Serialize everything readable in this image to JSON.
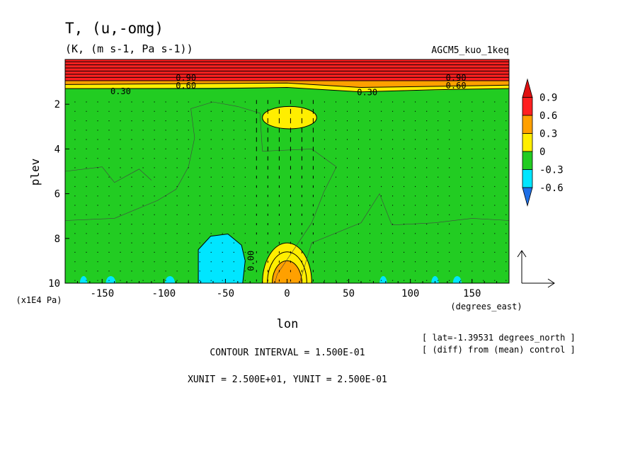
{
  "header": {
    "title": "T, (u,-omg)",
    "subtitle": "(K, (m s-1, Pa s-1))",
    "run_name": "AGCM5_kuo_1keq"
  },
  "chart_data": {
    "type": "heatmap",
    "plot": "longitude-pressure contour/shade with vector overlay",
    "xlabel": "lon",
    "xunit_label": "(degrees_east)",
    "ylabel": "plev",
    "yunit_label": "(x1E4 Pa)",
    "xlim": [
      -180,
      180
    ],
    "ylim": [
      10,
      0
    ],
    "x_ticks": [
      -150,
      -100,
      -50,
      0,
      50,
      100,
      150
    ],
    "x_tick_labels": [
      "-150",
      "-100",
      "-50",
      "0",
      "50",
      "100",
      "150"
    ],
    "y_ticks": [
      2,
      4,
      6,
      8,
      10
    ],
    "y_tick_labels": [
      "2",
      "4",
      "6",
      "8",
      "10"
    ],
    "colorbar": {
      "levels": [
        -0.6,
        -0.3,
        0,
        0.3,
        0.6,
        0.9
      ],
      "labels": [
        "-0.6",
        "-0.3",
        "0",
        "0.3",
        "0.6",
        "0.9"
      ],
      "colors": [
        "#1e6fe6",
        "#00e6ff",
        "#22cc22",
        "#ffee00",
        "#ffa000",
        "#ff2020",
        "#e01010"
      ]
    },
    "contour_labels": [
      {
        "text": "0.30",
        "lon": -135,
        "p": 1.55
      },
      {
        "text": "0.30",
        "lon": 65,
        "p": 1.6
      },
      {
        "text": "0.60",
        "lon": -82,
        "p": 1.3
      },
      {
        "text": "0.60",
        "lon": 137,
        "p": 1.3
      },
      {
        "text": "0.90",
        "lon": -82,
        "p": 0.95
      },
      {
        "text": "0.90",
        "lon": 137,
        "p": 0.95
      },
      {
        "text": "0.00",
        "lon": -27,
        "p": 9.0
      }
    ],
    "features": [
      {
        "desc": "strong warm layer near top",
        "lon_range": [
          -180,
          180
        ],
        "p_range": [
          0,
          1.3
        ],
        "max": 0.9
      },
      {
        "desc": "warm anomaly near surface",
        "lon_center": 0,
        "p_range": [
          8.2,
          10
        ],
        "max": 0.6
      },
      {
        "desc": "cool anomaly near surface",
        "lon_range": [
          -70,
          -35
        ],
        "p_range": [
          7.8,
          10
        ],
        "min": -0.3
      },
      {
        "desc": "small warm patch",
        "lon_center": 2,
        "p_center": 2.6,
        "max": 0.3
      }
    ],
    "vector_reference": {
      "xunit": "2.500E+01",
      "yunit": "2.500E-01"
    }
  },
  "footer": {
    "contour_interval": "CONTOUR INTERVAL = 1.500E-01",
    "units": "XUNIT = 2.500E+01, YUNIT = 2.500E-01",
    "lat_note": "[ lat=-1.39531 degrees_north ]",
    "diff_note": "[ (diff) from (mean) control ]"
  }
}
